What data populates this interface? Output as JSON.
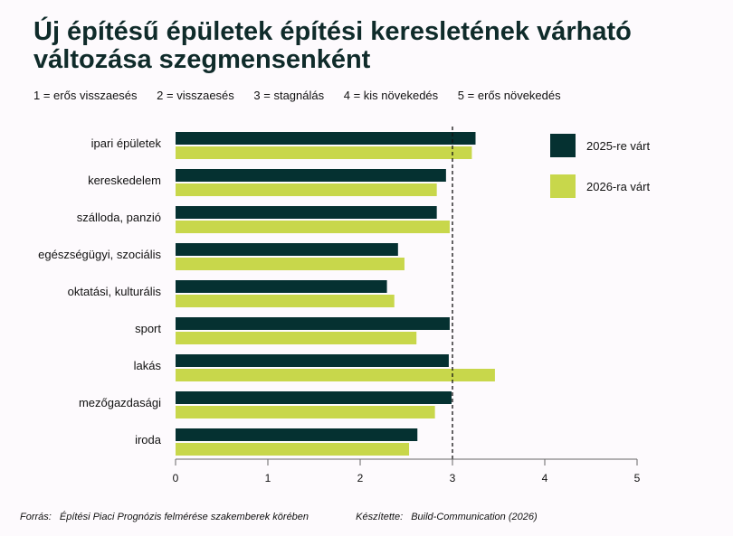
{
  "colors": {
    "dark": "#053131",
    "light": "#c8d74b",
    "background": "#fdfafd"
  },
  "scale_legend": [
    "1 = erős visszaesés",
    "2 = visszaesés",
    "3 = stagnálás",
    "4 = kis növekedés",
    "5 = erős növekedés"
  ],
  "footer": {
    "source_label": "Forrás:",
    "source_text": "Építési Piaci Prognózis felmérése szakemberek körében",
    "author_label": "Készítette:",
    "author_text": "Build-Communication (2026)"
  },
  "chart_data": {
    "type": "bar",
    "orientation": "horizontal",
    "title": "Új építésű épületek építési keresletének várható változása szegmensenként",
    "categories": [
      "ipari épületek",
      "kereskedelem",
      "szálloda, panzió",
      "egészségügyi, szociális",
      "oktatási, kulturális",
      "sport",
      "lakás",
      "mezőgazdasági",
      "iroda"
    ],
    "series": [
      {
        "name": "2025-re várt",
        "values": [
          3.25,
          2.93,
          2.83,
          2.41,
          2.29,
          2.97,
          2.96,
          2.99,
          2.62
        ]
      },
      {
        "name": "2026-ra várt",
        "values": [
          3.21,
          2.83,
          2.97,
          2.48,
          2.37,
          2.61,
          3.46,
          2.81,
          2.53
        ]
      }
    ],
    "xlim": [
      0,
      5
    ],
    "xticks": [
      0,
      1,
      2,
      3,
      4,
      5
    ],
    "reference_line": 3,
    "grid": false,
    "legend_position": "top-right"
  }
}
